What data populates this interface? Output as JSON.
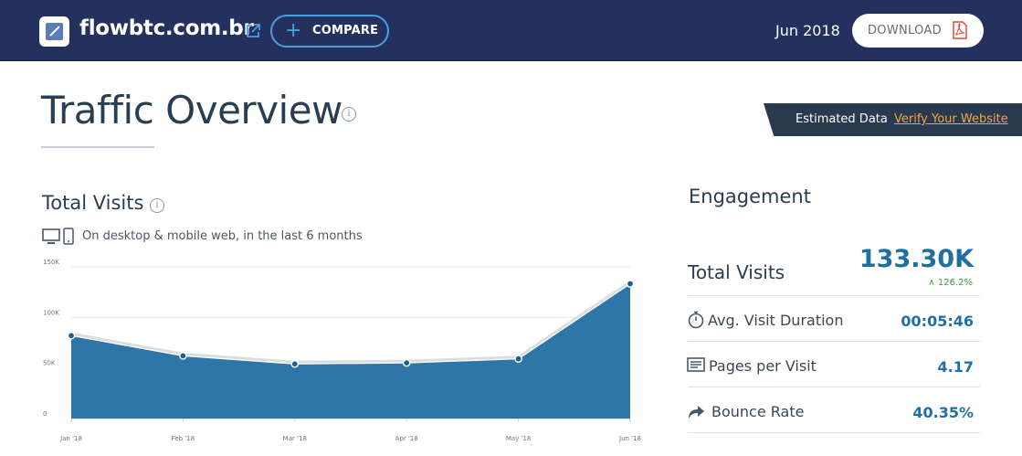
{
  "header": {
    "site_name": "flowbtc.com.br",
    "compare_label": "COMPARE",
    "date": "Jun 2018",
    "download_label": "DOWNLOAD"
  },
  "page": {
    "title": "Traffic Overview",
    "info_glyph": "i",
    "estimated_label": "Estimated Data",
    "verify_label": "Verify Your Website"
  },
  "visits_section": {
    "title": "Total Visits",
    "caption": "On desktop & mobile web, in the last 6 months"
  },
  "chart_data": {
    "type": "area",
    "title": "Total Visits",
    "categories": [
      "Jan '18",
      "Feb '18",
      "Mar '18",
      "Apr '18",
      "May '18",
      "Jun '18"
    ],
    "values": [
      82000,
      62000,
      54000,
      55000,
      59000,
      133300
    ],
    "y_ticks": [
      "0",
      "50K",
      "100K",
      "150K"
    ],
    "ylim": [
      0,
      150000
    ],
    "color": "#2e76a8",
    "grid": true
  },
  "engagement": {
    "title": "Engagement",
    "total_visits_label": "Total Visits",
    "total_visits_value": "133.30K",
    "total_visits_change": "126.2%",
    "metrics": [
      {
        "icon": "stopwatch-icon",
        "label": "Avg. Visit Duration",
        "value": "00:05:46"
      },
      {
        "icon": "pages-icon",
        "label": "Pages per Visit",
        "value": "4.17"
      },
      {
        "icon": "bounce-arrow-icon",
        "label": "Bounce Rate",
        "value": "40.35%"
      }
    ]
  },
  "colors": {
    "header_bg": "#24305e",
    "accent": "#1f6fa3",
    "compare_border": "#4a9fe0",
    "verify_link": "#f0a64a",
    "positive": "#3a9e3c"
  }
}
